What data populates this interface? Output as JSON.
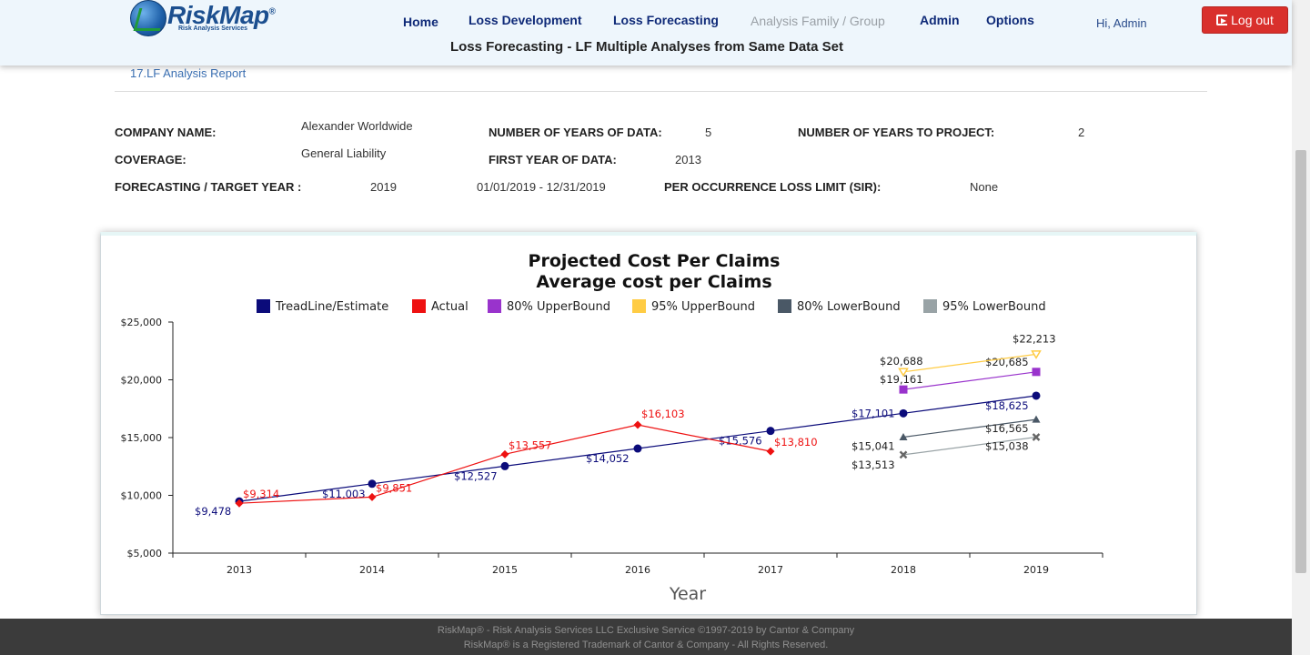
{
  "header": {
    "logo_text": "RiskMap",
    "logo_mark": "®",
    "logo_subtitle": "Risk Analysis Services",
    "nav": [
      {
        "label": "Home",
        "enabled": true
      },
      {
        "label": "Loss Development",
        "enabled": true
      },
      {
        "label": "Loss Forecasting",
        "enabled": true
      },
      {
        "label": "Analysis Family / Group",
        "enabled": false
      },
      {
        "label": "Admin",
        "enabled": true
      },
      {
        "label": "Options",
        "enabled": true
      }
    ],
    "greeting": "Hi, Admin",
    "logout_label": "Log out",
    "page_title": "Loss Forecasting - LF Multiple Analyses from Same Data Set"
  },
  "breadcrumb": "17.LF Analysis Report",
  "info": {
    "company_name_label": "COMPANY NAME:",
    "company_name": "Alexander Worldwide",
    "coverage_label": "COVERAGE:",
    "coverage": "General Liability",
    "forecast_year_label": "FORECASTING / TARGET YEAR :",
    "forecast_year": "2019",
    "forecast_period": "01/01/2019 - 12/31/2019",
    "years_of_data_label": "NUMBER OF YEARS OF DATA:",
    "years_of_data": "5",
    "first_year_label": "FIRST YEAR OF DATA:",
    "first_year": "2013",
    "loss_limit_label": "PER OCCURRENCE LOSS LIMIT (SIR):",
    "loss_limit": "None",
    "years_to_project_label": "NUMBER OF YEARS TO PROJECT:",
    "years_to_project": "2"
  },
  "chart_data": {
    "type": "line",
    "title": "Projected Cost Per Claims",
    "subtitle": "Average cost per Claims",
    "xlabel": "Year",
    "ylabel": "",
    "categories": [
      "2013",
      "2014",
      "2015",
      "2016",
      "2017",
      "2018",
      "2019"
    ],
    "ylim": [
      5000,
      25000
    ],
    "yticks": [
      "$5,000",
      "$10,000",
      "$15,000",
      "$20,000",
      "$25,000"
    ],
    "legend_position": "top",
    "series": [
      {
        "name": "TreadLine/Estimate",
        "color": "#0b0b7a",
        "marker": "circle",
        "values": [
          9478,
          11003,
          12527,
          14052,
          15576,
          17101,
          18625
        ],
        "labels": [
          "$9,478",
          "$11,003",
          "$12,527",
          "$14,052",
          "$15,576",
          "$17,101",
          "$18,625"
        ]
      },
      {
        "name": "Actual",
        "color": "#ee1111",
        "marker": "diamond",
        "values": [
          9314,
          9851,
          13557,
          16103,
          13810,
          null,
          null
        ],
        "labels": [
          "$9,314",
          "$9,851",
          "$13,557",
          "$16,103",
          "$13,810",
          null,
          null
        ]
      },
      {
        "name": "80% UpperBound",
        "color": "#9933cc",
        "marker": "square",
        "values": [
          null,
          null,
          null,
          null,
          null,
          19161,
          20685
        ],
        "labels": [
          null,
          null,
          null,
          null,
          null,
          "$19,161",
          "$20,685"
        ]
      },
      {
        "name": "95% UpperBound",
        "color": "#ffcc44",
        "marker": "triangle-down",
        "values": [
          null,
          null,
          null,
          null,
          null,
          20688,
          22213
        ],
        "labels": [
          null,
          null,
          null,
          null,
          null,
          "$20,688",
          "$22,213"
        ]
      },
      {
        "name": "80% LowerBound",
        "color": "#4a5866",
        "marker": "triangle",
        "values": [
          null,
          null,
          null,
          null,
          null,
          15041,
          16565
        ],
        "labels": [
          null,
          null,
          null,
          null,
          null,
          "$15,041",
          "$16,565"
        ]
      },
      {
        "name": "95% LowerBound",
        "color": "#99a3a6",
        "marker": "cross",
        "values": [
          null,
          null,
          null,
          null,
          null,
          13513,
          15038
        ],
        "labels": [
          null,
          null,
          null,
          null,
          null,
          "$13,513",
          "$15,038"
        ]
      }
    ]
  },
  "footer": {
    "line1": "RiskMap® - Risk Analysis Services LLC Exclusive Service ©1997-2019 by Cantor & Company",
    "line2": "RiskMap® is a Registered Trademark of Cantor & Company - All Rights Reserved."
  }
}
